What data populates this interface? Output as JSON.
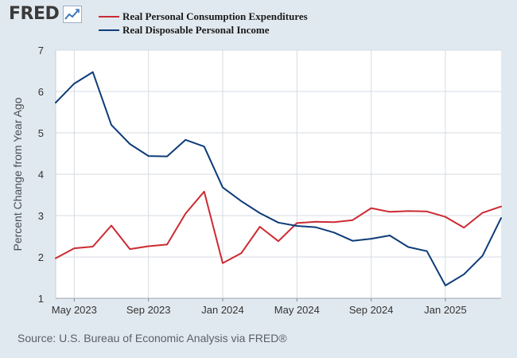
{
  "logo": {
    "text": "FRED",
    "icon": "line-chart-icon"
  },
  "colors": {
    "background": "#e1e9f0",
    "plot_background": "#ffffff",
    "pce": "#cc2a32",
    "income": "#0e3c78",
    "grid": "#d5dbe1"
  },
  "source": "Source: U.S. Bureau of Economic Analysis via FRED®",
  "chart_data": {
    "type": "line",
    "title": "",
    "xlabel": "",
    "ylabel": "Percent Change from Year Ago",
    "ylim": [
      1,
      7
    ],
    "yticks": [
      "1",
      "2",
      "3",
      "4",
      "5",
      "6",
      "7"
    ],
    "xlim": [
      "2023-04",
      "2025-04"
    ],
    "xticks": [
      {
        "date": "2023-05",
        "label": "May 2023"
      },
      {
        "date": "2023-09",
        "label": "Sep 2023"
      },
      {
        "date": "2024-01",
        "label": "Jan 2024"
      },
      {
        "date": "2024-05",
        "label": "May 2024"
      },
      {
        "date": "2024-09",
        "label": "Sep 2024"
      },
      {
        "date": "2025-01",
        "label": "Jan 2025"
      }
    ],
    "grid": true,
    "legend_position": "top-left",
    "x": [
      "2023-04",
      "2023-05",
      "2023-06",
      "2023-07",
      "2023-08",
      "2023-09",
      "2023-10",
      "2023-11",
      "2023-12",
      "2024-01",
      "2024-02",
      "2024-03",
      "2024-04",
      "2024-05",
      "2024-06",
      "2024-07",
      "2024-08",
      "2024-09",
      "2024-10",
      "2024-11",
      "2024-12",
      "2025-01",
      "2025-02",
      "2025-03",
      "2025-04"
    ],
    "series": [
      {
        "name": "Real Personal Consumption Expenditures",
        "color": "#cc2a32",
        "values": [
          1.97,
          2.21,
          2.25,
          2.76,
          2.19,
          2.26,
          2.3,
          3.05,
          3.58,
          1.85,
          2.09,
          2.73,
          2.38,
          2.82,
          2.85,
          2.84,
          2.89,
          3.18,
          3.09,
          3.11,
          3.1,
          2.97,
          2.71,
          3.07,
          3.22
        ]
      },
      {
        "name": "Real Disposable Personal Income",
        "color": "#0e3c78",
        "values": [
          5.73,
          6.19,
          6.47,
          5.19,
          4.73,
          4.44,
          4.43,
          4.83,
          4.67,
          3.68,
          3.35,
          3.06,
          2.83,
          2.75,
          2.72,
          2.59,
          2.39,
          2.44,
          2.52,
          2.24,
          2.14,
          1.31,
          1.58,
          2.03,
          2.94
        ]
      }
    ]
  }
}
